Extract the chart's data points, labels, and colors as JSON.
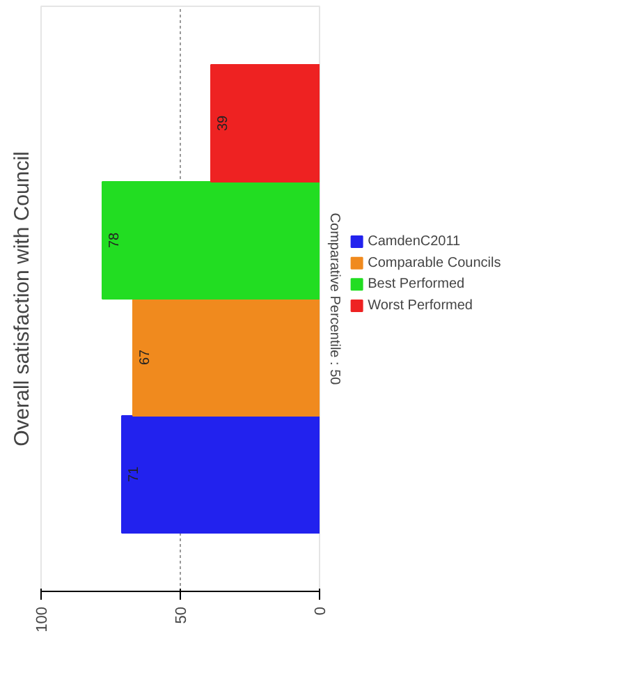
{
  "chart_data": {
    "type": "bar",
    "orientation": "horizontal",
    "title": "Overall satisfaction with Council",
    "ylabel": "Comparative Percentile : 50",
    "categories": [
      null
    ],
    "series": [
      {
        "name": "CamdenC2011",
        "color": "#2222ee",
        "values": [
          71
        ]
      },
      {
        "name": "Comparable Councils",
        "color": "#f08a1e",
        "values": [
          67
        ]
      },
      {
        "name": "Best Performed",
        "color": "#22dd22",
        "values": [
          78
        ]
      },
      {
        "name": "Worst Performed",
        "color": "#ee2222",
        "values": [
          39
        ]
      }
    ],
    "xlim": [
      100,
      0
    ],
    "xticks": [
      0,
      50,
      100
    ],
    "grid": "x",
    "legend": "right",
    "data_labels": true
  }
}
